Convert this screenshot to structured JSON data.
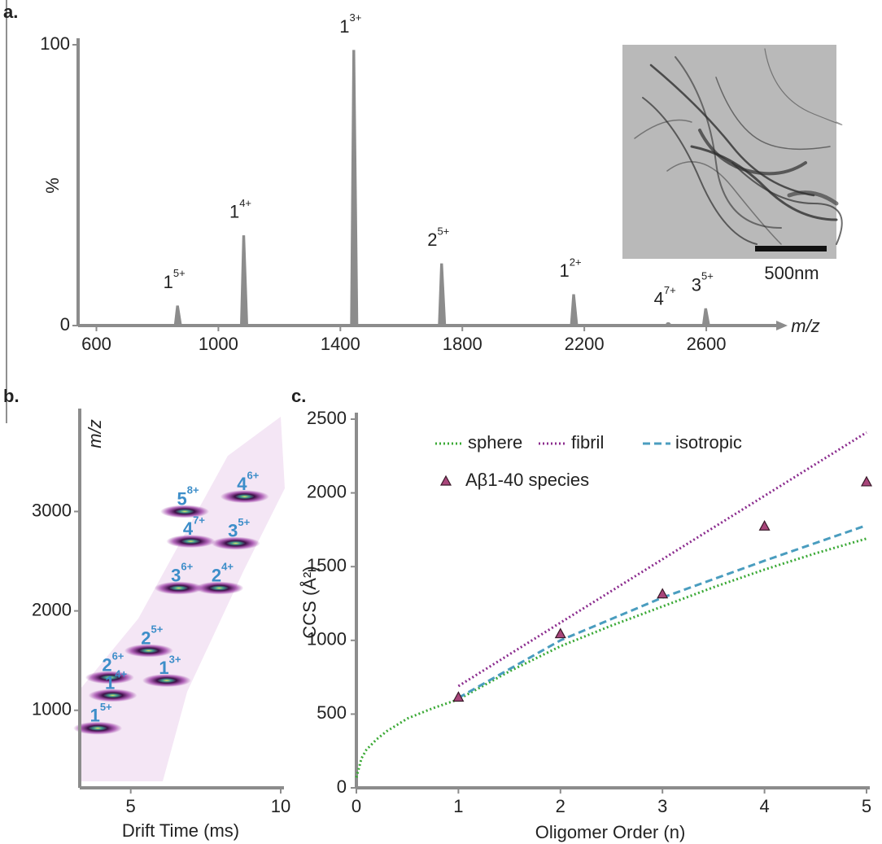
{
  "chart_data": [
    {
      "type": "spectrum",
      "panel": "a.",
      "x_label": "m/z",
      "y_label": "%",
      "xlim": [
        540,
        2840
      ],
      "ylim": [
        0,
        100
      ],
      "xticks": [
        600,
        1000,
        1400,
        1800,
        2200,
        2600
      ],
      "yticks": [
        0,
        100
      ],
      "color": "#8c8c8c",
      "peaks": [
        {
          "label": "1",
          "charge": "5+",
          "x": 866,
          "y": 7
        },
        {
          "label": "1",
          "charge": "4+",
          "x": 1083,
          "y": 32
        },
        {
          "label": "1",
          "charge": "3+",
          "x": 1444,
          "y": 98
        },
        {
          "label": "2",
          "charge": "5+",
          "x": 1732,
          "y": 22
        },
        {
          "label": "1",
          "charge": "2+",
          "x": 2165,
          "y": 11
        },
        {
          "label": "4",
          "charge": "7+",
          "x": 2475,
          "y": 1
        },
        {
          "label": "3",
          "charge": "5+",
          "x": 2598,
          "y": 6
        }
      ],
      "scale_bar": "500nm"
    },
    {
      "type": "heatmap",
      "panel": "b.",
      "x_label": "Drift Time (ms)",
      "y_label": "m/z",
      "xlim": [
        3.3,
        10
      ],
      "ylim": [
        220,
        3970
      ],
      "xticks": [
        5,
        10
      ],
      "yticks": [
        1000,
        2000,
        3000
      ],
      "color": "#9c3fa6",
      "label_color": "#3d8ec9",
      "spots": [
        {
          "label": "1",
          "charge": "5+",
          "x": 3.9,
          "y": 820
        },
        {
          "label": "1",
          "charge": "4+",
          "x": 4.4,
          "y": 1150
        },
        {
          "label": "2",
          "charge": "6+",
          "x": 4.3,
          "y": 1330
        },
        {
          "label": "1",
          "charge": "3+",
          "x": 6.2,
          "y": 1300
        },
        {
          "label": "2",
          "charge": "5+",
          "x": 5.6,
          "y": 1600
        },
        {
          "label": "3",
          "charge": "6+",
          "x": 6.6,
          "y": 2230
        },
        {
          "label": "2",
          "charge": "4+",
          "x": 7.95,
          "y": 2230
        },
        {
          "label": "4",
          "charge": "7+",
          "x": 7.0,
          "y": 2700
        },
        {
          "label": "3",
          "charge": "5+",
          "x": 8.5,
          "y": 2680
        },
        {
          "label": "5",
          "charge": "8+",
          "x": 6.8,
          "y": 3000
        },
        {
          "label": "4",
          "charge": "6+",
          "x": 8.8,
          "y": 3150
        }
      ]
    },
    {
      "type": "line",
      "panel": "c.",
      "x_label": "Oligomer Order (n)",
      "y_label": "CCS (Å²)",
      "xlim": [
        0,
        5
      ],
      "ylim": [
        0,
        2500
      ],
      "xticks": [
        0,
        1,
        2,
        3,
        4,
        5
      ],
      "yticks": [
        0,
        500,
        1000,
        1500,
        2000,
        2500
      ],
      "series": [
        {
          "name": "sphere",
          "color": "#3aa935",
          "style": "dotted",
          "x": [
            0,
            0.05,
            0.1,
            0.2,
            0.3,
            0.5,
            0.75,
            1,
            1.5,
            2,
            2.5,
            3,
            3.5,
            4,
            4.5,
            5
          ],
          "values": [
            70,
            200,
            260,
            330,
            385,
            470,
            540,
            600,
            790,
            960,
            1100,
            1230,
            1360,
            1480,
            1590,
            1690
          ]
        },
        {
          "name": "fibril",
          "color": "#8b2c8e",
          "style": "dotted",
          "x": [
            1,
            2,
            3,
            4,
            5
          ],
          "values": [
            690,
            1120,
            1550,
            1980,
            2410
          ]
        },
        {
          "name": "isotropic",
          "color": "#4a9dbf",
          "style": "dashed",
          "x": [
            1,
            2,
            3,
            4,
            5
          ],
          "values": [
            610,
            1000,
            1290,
            1540,
            1780
          ]
        },
        {
          "name": "Aβ1-40 species",
          "color": "#a8457a",
          "marker": "triangle",
          "x": [
            1,
            2,
            3,
            4,
            5
          ],
          "values": [
            610,
            1040,
            1310,
            1770,
            2070
          ]
        }
      ]
    }
  ]
}
